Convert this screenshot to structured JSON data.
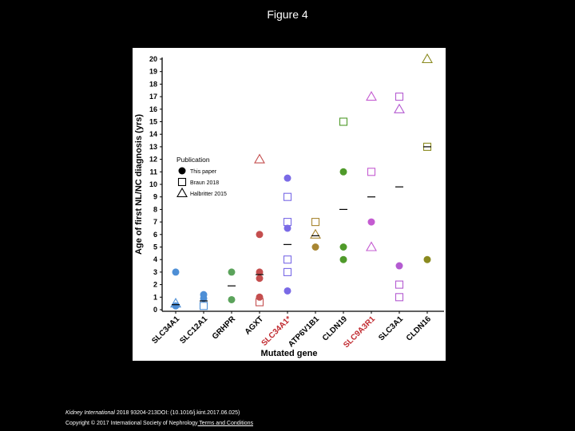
{
  "slide": {
    "title": "Figure 4"
  },
  "footer": {
    "journal": "Kidney International",
    "citation": " 2018 93204-213DOI: (10.1016/j.kint.2017.06.025)",
    "copyright": "Copyright © 2017 International Society of Nephrology",
    "link_text": " Terms and Conditions"
  },
  "colors": {
    "background": "#000000",
    "plot_background": "#ffffff",
    "axis": "#000000",
    "highlight_label": "#c0282e"
  },
  "chart_data": {
    "type": "scatter",
    "title": "",
    "xlabel": "Mutated gene",
    "ylabel": "Age of first NL/NC diagnosis (yrs)",
    "ylim": [
      0,
      20
    ],
    "yticks": [
      0,
      1,
      2,
      3,
      4,
      5,
      6,
      7,
      8,
      9,
      10,
      11,
      12,
      13,
      14,
      15,
      16,
      17,
      18,
      19,
      20
    ],
    "categories": [
      "SLC34A1",
      "SLC12A1",
      "GRHPR",
      "AGXT",
      "SLC34A1*",
      "ATP6V1B1",
      "CLDN19",
      "SLC9A3R1",
      "SLC3A1",
      "CLDN16"
    ],
    "highlighted_categories": [
      "SLC34A1*",
      "SLC9A3R1"
    ],
    "category_colors": [
      "#4e8fd6",
      "#4e8fd6",
      "#5ba35b",
      "#c44e4e",
      "#7a6ae6",
      "#a88632",
      "#4f9a2a",
      "#c45bd1",
      "#b45bd1",
      "#8a8a1f"
    ],
    "legend": {
      "title": "Publication",
      "position": "upper-left",
      "entries": [
        {
          "marker": "circle",
          "label": "This paper"
        },
        {
          "marker": "square",
          "label": "Braun 2018"
        },
        {
          "marker": "triangle",
          "label": "Halbritter 2015"
        }
      ]
    },
    "series": [
      {
        "name": "This paper",
        "marker": "circle",
        "points": [
          {
            "category": "SLC34A1",
            "value": 3
          },
          {
            "category": "SLC34A1",
            "value": 0.3
          },
          {
            "category": "SLC12A1",
            "value": 1.2
          },
          {
            "category": "SLC12A1",
            "value": 0.9
          },
          {
            "category": "GRHPR",
            "value": 3
          },
          {
            "category": "GRHPR",
            "value": 0.8
          },
          {
            "category": "AGXT",
            "value": 6
          },
          {
            "category": "AGXT",
            "value": 3
          },
          {
            "category": "AGXT",
            "value": 2.5
          },
          {
            "category": "AGXT",
            "value": 1
          },
          {
            "category": "SLC34A1*",
            "value": 10.5
          },
          {
            "category": "SLC34A1*",
            "value": 6.5
          },
          {
            "category": "SLC34A1*",
            "value": 1.5
          },
          {
            "category": "ATP6V1B1",
            "value": 5
          },
          {
            "category": "CLDN19",
            "value": 11
          },
          {
            "category": "CLDN19",
            "value": 5
          },
          {
            "category": "CLDN19",
            "value": 4
          },
          {
            "category": "SLC9A3R1",
            "value": 7
          },
          {
            "category": "SLC3A1",
            "value": 3.5
          },
          {
            "category": "CLDN16",
            "value": 4
          }
        ]
      },
      {
        "name": "Braun 2018",
        "marker": "square",
        "points": [
          {
            "category": "SLC12A1",
            "value": 0.3
          },
          {
            "category": "AGXT",
            "value": 0.6
          },
          {
            "category": "SLC34A1*",
            "value": 9
          },
          {
            "category": "SLC34A1*",
            "value": 7
          },
          {
            "category": "SLC34A1*",
            "value": 4
          },
          {
            "category": "SLC34A1*",
            "value": 3
          },
          {
            "category": "ATP6V1B1",
            "value": 7
          },
          {
            "category": "CLDN19",
            "value": 15
          },
          {
            "category": "SLC9A3R1",
            "value": 11
          },
          {
            "category": "SLC3A1",
            "value": 17
          },
          {
            "category": "SLC3A1",
            "value": 2
          },
          {
            "category": "SLC3A1",
            "value": 1
          },
          {
            "category": "CLDN16",
            "value": 13
          }
        ]
      },
      {
        "name": "Halbritter 2015",
        "marker": "triangle",
        "points": [
          {
            "category": "SLC34A1",
            "value": 0.5
          },
          {
            "category": "AGXT",
            "value": 12
          },
          {
            "category": "ATP6V1B1",
            "value": 6
          },
          {
            "category": "SLC9A3R1",
            "value": 17
          },
          {
            "category": "SLC9A3R1",
            "value": 5
          },
          {
            "category": "SLC3A1",
            "value": 16
          },
          {
            "category": "CLDN16",
            "value": 20
          }
        ]
      },
      {
        "name": "Median",
        "marker": "dash",
        "points": [
          {
            "category": "SLC34A1",
            "value": 0.4
          },
          {
            "category": "SLC12A1",
            "value": 0.7
          },
          {
            "category": "GRHPR",
            "value": 1.9
          },
          {
            "category": "AGXT",
            "value": 2.8
          },
          {
            "category": "SLC34A1*",
            "value": 5.2
          },
          {
            "category": "ATP6V1B1",
            "value": 5.9
          },
          {
            "category": "CLDN19",
            "value": 8
          },
          {
            "category": "SLC9A3R1",
            "value": 9
          },
          {
            "category": "SLC3A1",
            "value": 9.8
          },
          {
            "category": "CLDN16",
            "value": 13
          }
        ]
      }
    ]
  }
}
